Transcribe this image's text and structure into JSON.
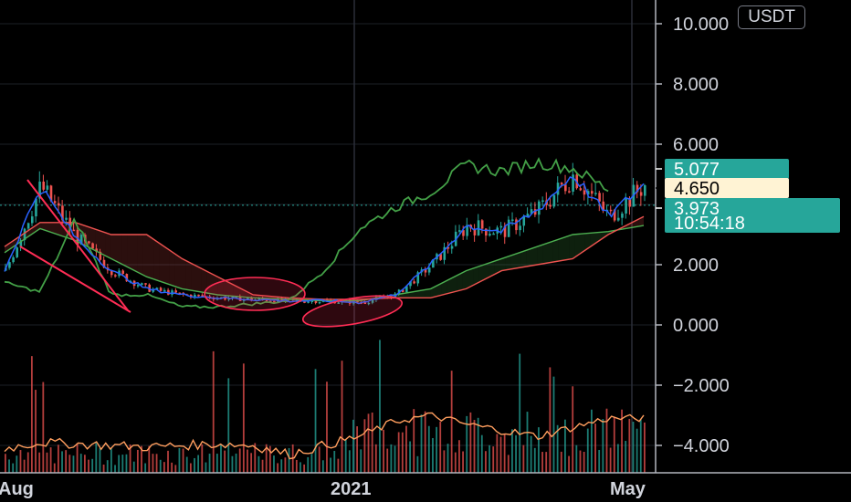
{
  "currency": "USDT",
  "colors": {
    "background": "#000000",
    "up": "#26a69a",
    "down": "#ef5350",
    "ma_fast": "#2962ff",
    "leading_span_a": "#4caf50",
    "leading_span_b": "#ef5350",
    "lagging_span": "#43a047",
    "volume_ma": "#ff9e5e",
    "annotation": "#ff2d55"
  },
  "chart_data": {
    "type": "line",
    "title": "",
    "xlabel": "",
    "ylabel": "",
    "ylim": [
      -4.5,
      10.5
    ],
    "y_ticks": [
      "10.000",
      "8.000",
      "6.000",
      "2.000",
      "0.000",
      "−2.000",
      "−4.000"
    ],
    "x_ticks": [
      "Aug",
      "2021",
      "May"
    ],
    "price_tags": [
      {
        "label": "5.077",
        "value": 5.077,
        "style": "teal"
      },
      {
        "label": "4.650",
        "value": 4.65,
        "style": "cream"
      },
      {
        "label": "3.973",
        "value": 3.973,
        "style": "teal"
      },
      {
        "label": "10:54:18",
        "value": null,
        "style": "teal-countdown"
      }
    ],
    "last_price_line": 3.973,
    "series": [
      {
        "name": "",
        "kind": "close",
        "x": [
          0,
          1,
          2,
          3,
          4,
          5,
          6,
          7,
          8,
          9,
          10,
          11,
          12,
          13,
          14,
          15,
          16,
          17,
          18
        ],
        "values": [
          1.8,
          4.6,
          2.9,
          1.8,
          1.2,
          1.0,
          0.9,
          0.85,
          0.8,
          0.8,
          0.75,
          1.0,
          2.0,
          3.3,
          3.1,
          3.8,
          5.0,
          3.6,
          4.65
        ]
      },
      {
        "name": "",
        "kind": "leading_span_a",
        "x": [
          0,
          1,
          2,
          3,
          4,
          5,
          6,
          7,
          8,
          9,
          10,
          11,
          12,
          13,
          14,
          15,
          16,
          17,
          18
        ],
        "values": [
          2.4,
          3.2,
          2.8,
          2.2,
          1.6,
          1.2,
          1.0,
          0.9,
          0.85,
          0.8,
          0.8,
          1.0,
          1.2,
          1.8,
          2.2,
          2.6,
          3.0,
          3.1,
          3.3
        ]
      },
      {
        "name": "",
        "kind": "leading_span_b",
        "x": [
          0,
          1,
          2,
          3,
          4,
          5,
          6,
          7,
          8,
          9,
          10,
          11,
          12,
          13,
          14,
          15,
          16,
          17,
          18
        ],
        "values": [
          2.6,
          3.4,
          3.4,
          3.0,
          3.0,
          2.2,
          1.6,
          1.0,
          0.9,
          0.85,
          0.85,
          0.9,
          0.9,
          1.2,
          1.8,
          2.0,
          2.2,
          3.0,
          3.6
        ]
      },
      {
        "name": "",
        "kind": "lagging_span",
        "x": [
          0,
          1,
          2,
          3,
          4,
          5,
          6,
          7,
          8,
          9,
          10,
          11,
          12,
          13,
          14,
          15,
          16,
          17
        ],
        "values": [
          1.4,
          1.1,
          3.5,
          1.0,
          1.0,
          0.6,
          0.6,
          0.7,
          0.8,
          1.8,
          3.2,
          3.9,
          4.4,
          5.3,
          5.1,
          5.4,
          5.2,
          4.5
        ]
      },
      {
        "name": "",
        "kind": "volume_ma",
        "x": [
          0,
          1,
          2,
          3,
          4,
          5,
          6,
          7,
          8,
          9,
          10,
          11,
          12,
          13,
          14,
          15,
          16,
          17,
          18
        ],
        "values": [
          -4.1,
          -3.9,
          -3.95,
          -4.0,
          -4.05,
          -4.0,
          -3.95,
          -4.0,
          -4.3,
          -4.0,
          -3.7,
          -3.2,
          -3.0,
          -3.3,
          -3.5,
          -3.7,
          -3.4,
          -3.1,
          -3.1
        ]
      }
    ]
  }
}
